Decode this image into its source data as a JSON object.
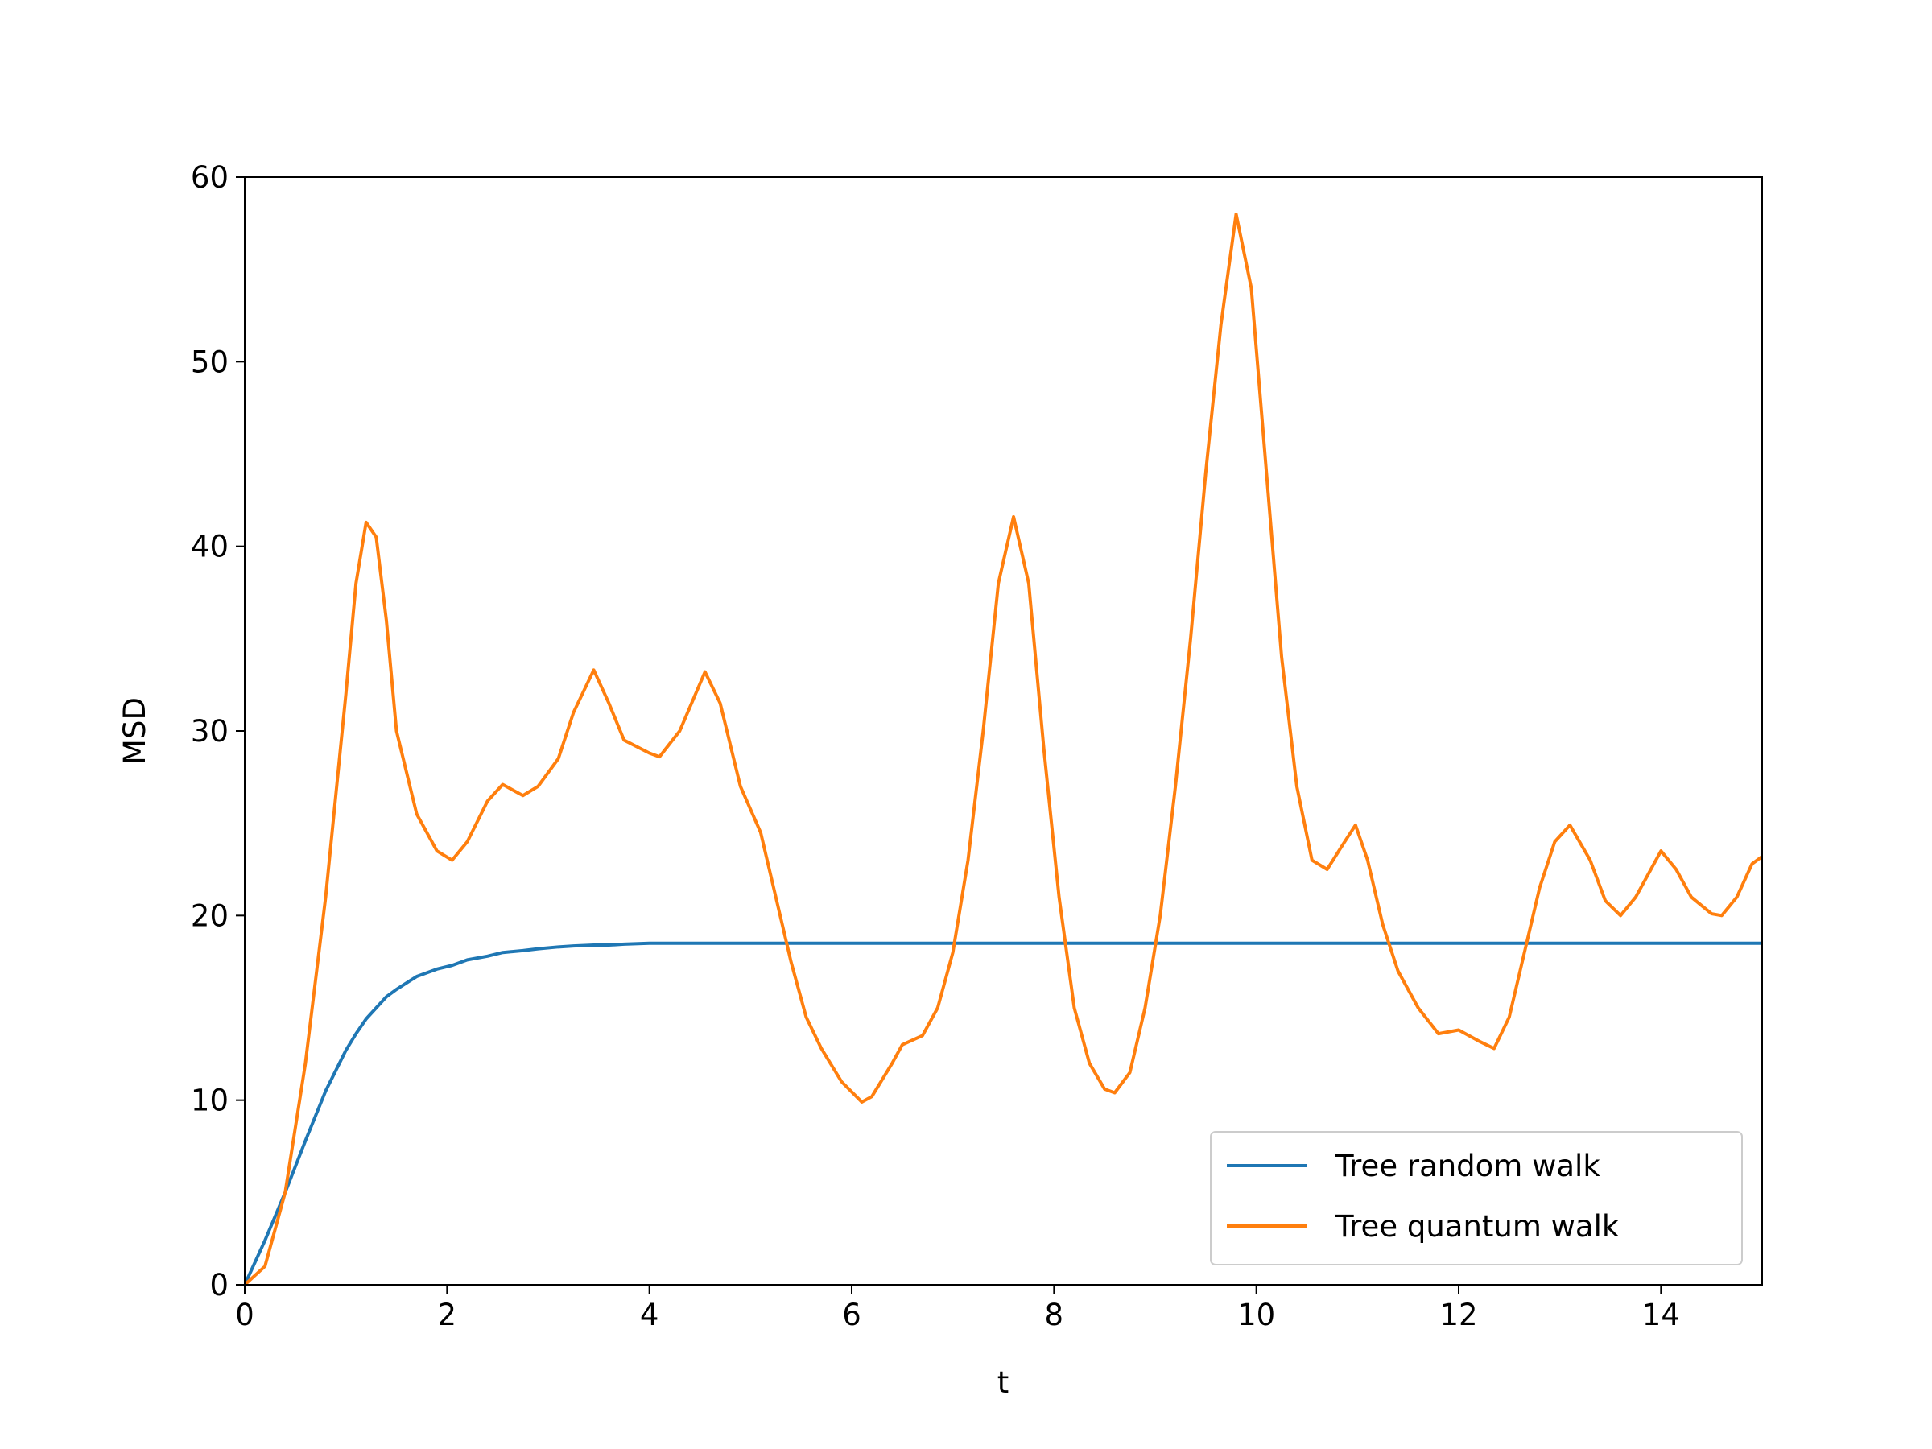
{
  "chart_data": {
    "type": "line",
    "xlabel": "t",
    "ylabel": "MSD",
    "x": [
      0,
      0.2,
      0.4,
      0.6,
      0.8,
      1.0,
      1.1,
      1.2,
      1.3,
      1.4,
      1.5,
      1.7,
      1.9,
      2.05,
      2.2,
      2.4,
      2.55,
      2.75,
      2.9,
      3.1,
      3.25,
      3.45,
      3.6,
      3.75,
      4.0,
      4.1,
      4.3,
      4.55,
      4.7,
      4.9,
      5.1,
      5.25,
      5.4,
      5.55,
      5.7,
      5.9,
      6.1,
      6.2,
      6.4,
      6.5,
      6.7,
      6.85,
      7.0,
      7.15,
      7.3,
      7.45,
      7.6,
      7.75,
      7.9,
      8.05,
      8.2,
      8.35,
      8.5,
      8.6,
      8.75,
      8.9,
      9.05,
      9.2,
      9.35,
      9.5,
      9.65,
      9.8,
      9.95,
      10.1,
      10.25,
      10.4,
      10.55,
      10.7,
      10.85,
      10.98,
      11.1,
      11.25,
      11.4,
      11.6,
      11.8,
      12.0,
      12.2,
      12.35,
      12.5,
      12.65,
      12.8,
      12.95,
      13.1,
      13.3,
      13.45,
      13.6,
      13.75,
      13.9,
      14.0,
      14.15,
      14.3,
      14.5,
      14.6,
      14.75,
      14.9,
      15.0
    ],
    "series": [
      {
        "name": "Tree random walk",
        "color": "#1f77b4",
        "values": [
          0,
          2.4,
          5,
          7.8,
          10.5,
          12.7,
          13.6,
          14.4,
          15,
          15.6,
          16,
          16.7,
          17.1,
          17.3,
          17.6,
          17.8,
          18,
          18.1,
          18.2,
          18.3,
          18.35,
          18.4,
          18.4,
          18.45,
          18.5,
          18.5,
          18.5,
          18.5,
          18.5,
          18.5,
          18.5,
          18.5,
          18.5,
          18.5,
          18.5,
          18.5,
          18.5,
          18.5,
          18.5,
          18.5,
          18.5,
          18.5,
          18.5,
          18.5,
          18.5,
          18.5,
          18.5,
          18.5,
          18.5,
          18.5,
          18.5,
          18.5,
          18.5,
          18.5,
          18.5,
          18.5,
          18.5,
          18.5,
          18.5,
          18.5,
          18.5,
          18.5,
          18.5,
          18.5,
          18.5,
          18.5,
          18.5,
          18.5,
          18.5,
          18.5,
          18.5,
          18.5,
          18.5,
          18.5,
          18.5,
          18.5,
          18.5,
          18.5,
          18.5,
          18.5,
          18.5,
          18.5,
          18.5,
          18.5,
          18.5,
          18.5,
          18.5,
          18.5,
          18.5,
          18.5,
          18.5,
          18.5,
          18.5,
          18.5,
          18.5,
          18.5
        ]
      },
      {
        "name": "Tree quantum walk",
        "color": "#ff7f0e",
        "values": [
          0,
          1,
          5,
          12,
          21,
          32,
          38,
          41.3,
          40.5,
          36,
          30,
          25.5,
          23.5,
          23,
          24,
          26.2,
          27.1,
          26.5,
          27,
          28.5,
          31,
          33.3,
          31.5,
          29.5,
          28.8,
          28.6,
          30,
          33.2,
          31.5,
          27,
          24.5,
          21,
          17.5,
          14.5,
          12.8,
          11,
          9.9,
          10.2,
          12,
          13,
          13.5,
          15,
          18,
          23,
          30,
          38,
          41.6,
          38,
          29,
          21,
          15,
          12,
          10.6,
          10.4,
          11.5,
          15,
          20,
          27,
          35,
          44,
          52,
          58,
          54,
          44,
          34,
          27,
          23,
          22.5,
          23.8,
          24.9,
          23,
          19.5,
          17,
          15,
          13.6,
          13.8,
          13.2,
          12.8,
          14.5,
          18,
          21.5,
          24,
          24.9,
          23,
          20.8,
          20,
          21,
          22.5,
          23.5,
          22.5,
          21,
          20.1,
          20,
          21,
          22.8,
          23.2
        ]
      }
    ],
    "xlim": [
      0,
      15
    ],
    "xticks": [
      0,
      2,
      4,
      6,
      8,
      10,
      12,
      14
    ],
    "ylim": [
      0,
      60
    ],
    "yticks": [
      0,
      10,
      20,
      30,
      40,
      50,
      60
    ],
    "grid": false,
    "legend": "lower right"
  }
}
